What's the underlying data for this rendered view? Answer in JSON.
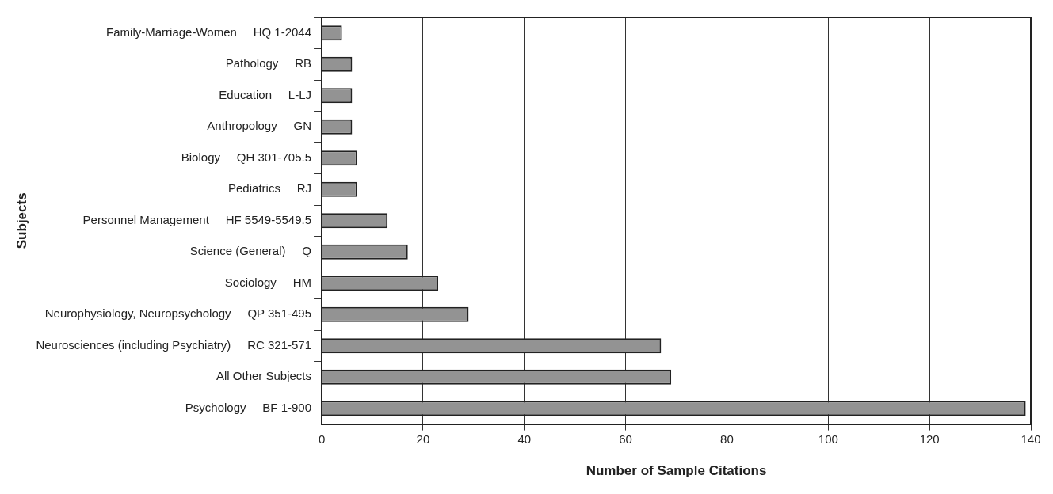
{
  "chart_data": {
    "type": "bar",
    "orientation": "horizontal",
    "xlabel": "Number of Sample Citations",
    "ylabel": "Subjects",
    "categories": [
      "Family-Marriage-Women     HQ 1-2044",
      "Pathology     RB",
      "Education     L-LJ",
      "Anthropology     GN",
      "Biology     QH 301-705.5",
      "Pediatrics     RJ",
      "Personnel Management     HF 5549-5549.5",
      "Science (General)     Q",
      "Sociology     HM",
      "Neurophysiology, Neuropsychology     QP 351-495",
      "Neurosciences (including Psychiatry)     RC 321-571",
      "All Other Subjects",
      "Psychology     BF 1-900"
    ],
    "values": [
      4,
      6,
      6,
      6,
      7,
      7,
      13,
      17,
      23,
      29,
      67,
      69,
      139
    ],
    "color": "#939393",
    "xlim": [
      0,
      140
    ],
    "xticks": [
      0,
      20,
      40,
      60,
      80,
      100,
      120,
      140
    ],
    "grid": "x",
    "legend": false
  }
}
